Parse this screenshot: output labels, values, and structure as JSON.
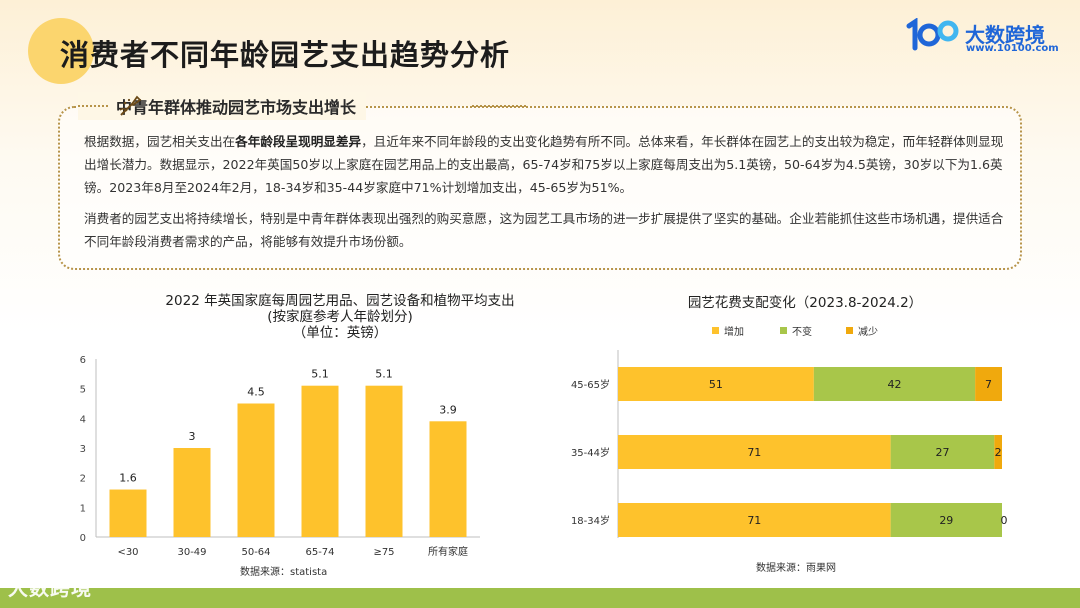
{
  "header": {
    "title": "消费者不同年龄园艺支出趋势分析",
    "brand_name": "大数跨境",
    "brand_url": "www.10100.com",
    "brand_color": "#1f66d8"
  },
  "section": {
    "title": "中青年群体推动园艺市场支出增长",
    "para1_a": "根据数据，园艺相关支出在",
    "para1_bold": "各年龄段呈现明显差异",
    "para1_b": "，且近年来不同年龄段的支出变化趋势有所不同。总体来看，年长群体在园艺上的支出较为稳定，而年轻群体则显现出增长潜力。数据显示，2022年英国50岁以上家庭在园艺用品上的支出最高，65-74岁和75岁以上家庭每周支出为5.1英镑，50-64岁为4.5英镑，30岁以下为1.6英镑。2023年8月至2024年2月，18-34岁和35-44岁家庭中71%计划增加支出，45-65岁为51%。",
    "para2": "消费者的园艺支出将持续增长，特别是中青年群体表现出强烈的购买意愿，这为园艺工具市场的进一步扩展提供了坚实的基础。企业若能抓住这些市场机遇，提供适合不同年龄段消费者需求的产品，将能够有效提升市场份额。"
  },
  "footer": {
    "watermark": "大数跨境",
    "band_color": "#9ec04a"
  },
  "chart_data": [
    {
      "type": "bar",
      "title": "2022 年英国家庭每周园艺用品、园艺设备和植物平均支出",
      "subtitle1": "(按家庭参考人年龄划分)",
      "subtitle2": "（单位：英镑）",
      "categories": [
        "<30",
        "30-49",
        "50-64",
        "65-74",
        "≥75",
        "所有家庭"
      ],
      "values": [
        1.6,
        3,
        4.5,
        5.1,
        5.1,
        3.9
      ],
      "ylim": [
        0,
        6
      ],
      "yticks": [
        0,
        1,
        2,
        3,
        4,
        5,
        6
      ],
      "color": "#fec22c",
      "source": "数据来源：statista"
    },
    {
      "type": "bar",
      "orientation": "horizontal-stacked",
      "title": "园艺花费支配变化（2023.8-2024.2）",
      "categories": [
        "45-65岁",
        "35-44岁",
        "18-34岁"
      ],
      "series": [
        {
          "name": "增加",
          "values": [
            51,
            71,
            71
          ],
          "color": "#fec22c"
        },
        {
          "name": "不变",
          "values": [
            42,
            27,
            29
          ],
          "color": "#a8c64a"
        },
        {
          "name": "减少",
          "values": [
            7,
            2,
            0
          ],
          "color": "#f0a90d"
        }
      ],
      "xlim": [
        0,
        100
      ],
      "source": "数据来源：雨果网"
    }
  ]
}
